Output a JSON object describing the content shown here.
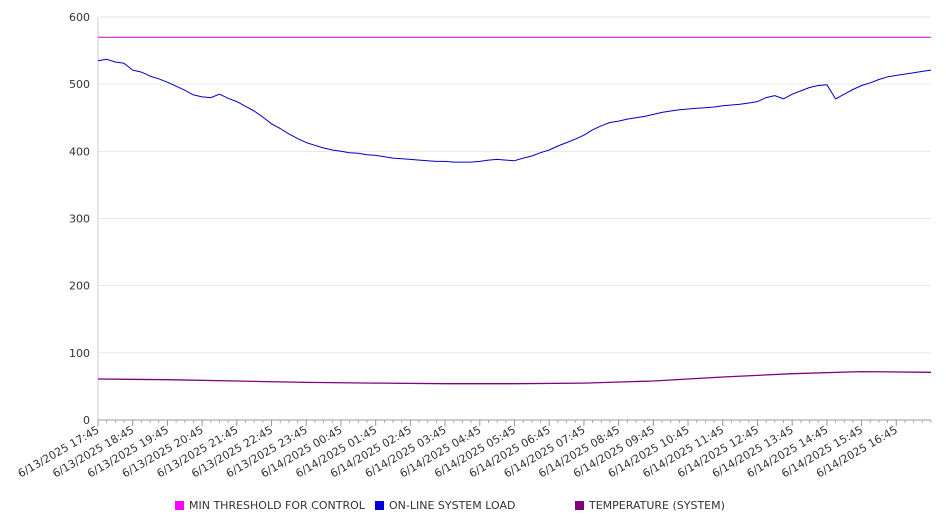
{
  "chart_data": {
    "type": "line",
    "xlabel": "",
    "ylabel": "",
    "ylim": [
      0,
      600
    ],
    "yticks": [
      0,
      100,
      200,
      300,
      400,
      500,
      600
    ],
    "grid": true,
    "legend_position": "bottom",
    "x_tick_labels": [
      "6/13/2025 17:45",
      "6/13/2025 18:45",
      "6/13/2025 19:45",
      "6/13/2025 20:45",
      "6/13/2025 21:45",
      "6/13/2025 22:45",
      "6/13/2025 23:45",
      "6/14/2025 00:45",
      "6/14/2025 01:45",
      "6/14/2025 02:45",
      "6/14/2025 03:45",
      "6/14/2025 04:45",
      "6/14/2025 05:45",
      "6/14/2025 06:45",
      "6/14/2025 07:45",
      "6/14/2025 08:45",
      "6/14/2025 09:45",
      "6/14/2025 10:45",
      "6/14/2025 11:45",
      "6/14/2025 12:45",
      "6/14/2025 13:45",
      "6/14/2025 14:45",
      "6/14/2025 15:45",
      "6/14/2025 16:45"
    ],
    "series": [
      {
        "name": "MIN THRESHOLD FOR CONTROL",
        "color": "#cc00cc",
        "points": [
          [
            "6/13/2025 17:45",
            570
          ],
          [
            "6/14/2025 17:45",
            570
          ]
        ]
      },
      {
        "name": "ON-LINE SYSTEM LOAD",
        "color": "#0000cc",
        "points": [
          [
            "6/13/2025 17:45",
            535
          ],
          [
            "6/13/2025 18:00",
            537
          ],
          [
            "6/13/2025 18:15",
            533
          ],
          [
            "6/13/2025 18:30",
            531
          ],
          [
            "6/13/2025 18:45",
            521
          ],
          [
            "6/13/2025 19:00",
            518
          ],
          [
            "6/13/2025 19:15",
            512
          ],
          [
            "6/13/2025 19:30",
            508
          ],
          [
            "6/13/2025 19:45",
            503
          ],
          [
            "6/13/2025 20:00",
            497
          ],
          [
            "6/13/2025 20:15",
            491
          ],
          [
            "6/13/2025 20:30",
            484
          ],
          [
            "6/13/2025 20:45",
            481
          ],
          [
            "6/13/2025 21:00",
            480
          ],
          [
            "6/13/2025 21:15",
            485
          ],
          [
            "6/13/2025 21:30",
            479
          ],
          [
            "6/13/2025 21:45",
            474
          ],
          [
            "6/13/2025 22:00",
            467
          ],
          [
            "6/13/2025 22:15",
            460
          ],
          [
            "6/13/2025 22:30",
            451
          ],
          [
            "6/13/2025 22:45",
            441
          ],
          [
            "6/13/2025 23:00",
            434
          ],
          [
            "6/13/2025 23:15",
            426
          ],
          [
            "6/13/2025 23:30",
            419
          ],
          [
            "6/13/2025 23:45",
            413
          ],
          [
            "6/14/2025 00:00",
            409
          ],
          [
            "6/14/2025 00:15",
            405
          ],
          [
            "6/14/2025 00:30",
            402
          ],
          [
            "6/14/2025 00:45",
            400
          ],
          [
            "6/14/2025 01:00",
            398
          ],
          [
            "6/14/2025 01:15",
            397
          ],
          [
            "6/14/2025 01:30",
            395
          ],
          [
            "6/14/2025 01:45",
            394
          ],
          [
            "6/14/2025 02:00",
            392
          ],
          [
            "6/14/2025 02:15",
            390
          ],
          [
            "6/14/2025 02:30",
            389
          ],
          [
            "6/14/2025 02:45",
            388
          ],
          [
            "6/14/2025 03:00",
            387
          ],
          [
            "6/14/2025 03:15",
            386
          ],
          [
            "6/14/2025 03:30",
            385
          ],
          [
            "6/14/2025 03:45",
            385
          ],
          [
            "6/14/2025 04:00",
            384
          ],
          [
            "6/14/2025 04:15",
            384
          ],
          [
            "6/14/2025 04:30",
            384
          ],
          [
            "6/14/2025 04:45",
            385
          ],
          [
            "6/14/2025 05:00",
            387
          ],
          [
            "6/14/2025 05:15",
            388
          ],
          [
            "6/14/2025 05:30",
            387
          ],
          [
            "6/14/2025 05:45",
            386
          ],
          [
            "6/14/2025 06:00",
            390
          ],
          [
            "6/14/2025 06:15",
            393
          ],
          [
            "6/14/2025 06:30",
            398
          ],
          [
            "6/14/2025 06:45",
            402
          ],
          [
            "6/14/2025 07:00",
            408
          ],
          [
            "6/14/2025 07:15",
            413
          ],
          [
            "6/14/2025 07:30",
            418
          ],
          [
            "6/14/2025 07:45",
            424
          ],
          [
            "6/14/2025 08:00",
            432
          ],
          [
            "6/14/2025 08:15",
            438
          ],
          [
            "6/14/2025 08:30",
            443
          ],
          [
            "6/14/2025 08:45",
            445
          ],
          [
            "6/14/2025 09:00",
            448
          ],
          [
            "6/14/2025 09:15",
            450
          ],
          [
            "6/14/2025 09:30",
            452
          ],
          [
            "6/14/2025 09:45",
            455
          ],
          [
            "6/14/2025 10:00",
            458
          ],
          [
            "6/14/2025 10:15",
            460
          ],
          [
            "6/14/2025 10:30",
            462
          ],
          [
            "6/14/2025 10:45",
            463
          ],
          [
            "6/14/2025 11:00",
            464
          ],
          [
            "6/14/2025 11:15",
            465
          ],
          [
            "6/14/2025 11:30",
            466
          ],
          [
            "6/14/2025 11:45",
            468
          ],
          [
            "6/14/2025 12:00",
            469
          ],
          [
            "6/14/2025 12:15",
            470
          ],
          [
            "6/14/2025 12:30",
            472
          ],
          [
            "6/14/2025 12:45",
            474
          ],
          [
            "6/14/2025 13:00",
            480
          ],
          [
            "6/14/2025 13:15",
            483
          ],
          [
            "6/14/2025 13:30",
            478
          ],
          [
            "6/14/2025 13:45",
            485
          ],
          [
            "6/14/2025 14:00",
            490
          ],
          [
            "6/14/2025 14:15",
            495
          ],
          [
            "6/14/2025 14:30",
            498
          ],
          [
            "6/14/2025 14:45",
            499
          ],
          [
            "6/14/2025 15:00",
            478
          ],
          [
            "6/14/2025 15:15",
            485
          ],
          [
            "6/14/2025 15:30",
            492
          ],
          [
            "6/14/2025 15:45",
            498
          ],
          [
            "6/14/2025 16:00",
            502
          ],
          [
            "6/14/2025 16:15",
            507
          ],
          [
            "6/14/2025 16:30",
            511
          ],
          [
            "6/14/2025 16:45",
            513
          ],
          [
            "6/14/2025 17:00",
            515
          ],
          [
            "6/14/2025 17:15",
            517
          ],
          [
            "6/14/2025 17:30",
            519
          ],
          [
            "6/14/2025 17:45",
            521
          ]
        ]
      },
      {
        "name": "TEMPERATURE (SYSTEM)",
        "color": "#800080",
        "points": [
          [
            "6/13/2025 17:45",
            61
          ],
          [
            "6/13/2025 19:45",
            60
          ],
          [
            "6/13/2025 21:45",
            58
          ],
          [
            "6/13/2025 23:45",
            56
          ],
          [
            "6/14/2025 01:45",
            55
          ],
          [
            "6/14/2025 03:45",
            54
          ],
          [
            "6/14/2025 05:45",
            54
          ],
          [
            "6/14/2025 07:45",
            55
          ],
          [
            "6/14/2025 09:45",
            58
          ],
          [
            "6/14/2025 11:45",
            64
          ],
          [
            "6/14/2025 13:45",
            69
          ],
          [
            "6/14/2025 15:45",
            72
          ],
          [
            "6/14/2025 17:45",
            71
          ]
        ]
      }
    ]
  }
}
